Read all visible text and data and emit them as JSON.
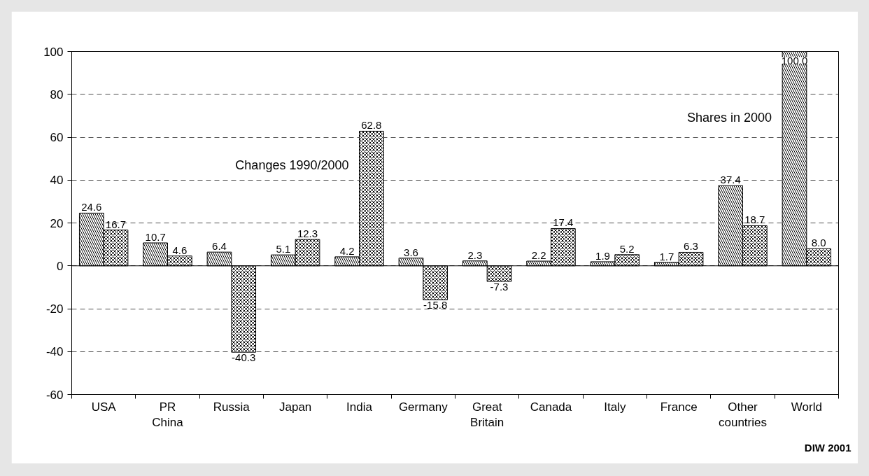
{
  "chart_data": {
    "type": "bar",
    "categories": [
      "USA",
      "PR China",
      "Russia",
      "Japan",
      "India",
      "Germany",
      "Great Britain",
      "Canada",
      "Italy",
      "France",
      "Other countries",
      "World"
    ],
    "series": [
      {
        "name": "Shares in 2000",
        "color": "#000000",
        "values": [
          24.6,
          10.7,
          6.4,
          5.1,
          4.2,
          3.6,
          2.3,
          2.2,
          1.9,
          1.7,
          37.4,
          100.0
        ],
        "value_labels": [
          "24.6",
          "10.7",
          "6.4",
          "5.1",
          "4.2",
          "3.6",
          "2.3",
          "2.2",
          "1.9",
          "1.7",
          "37.4",
          "100.0"
        ]
      },
      {
        "name": "Changes 1990/2000",
        "color": "#000000",
        "values": [
          16.7,
          4.6,
          -40.3,
          12.3,
          62.8,
          -15.8,
          -7.3,
          17.4,
          5.2,
          6.3,
          18.7,
          8.0
        ],
        "value_labels": [
          "16.7",
          "4.6",
          "-40.3",
          "12.3",
          "62.8",
          "-15.8",
          "-7.3",
          "17.4",
          "5.2",
          "6.3",
          "18.7",
          "8.0"
        ]
      }
    ],
    "ylim": [
      -60,
      100
    ],
    "yticks": [
      -60,
      -40,
      -20,
      0,
      20,
      40,
      60,
      80,
      100
    ],
    "grid": "y",
    "ref_lines": [
      {
        "axis": "y",
        "value": 0,
        "color": "#000000",
        "line_style": "solid"
      }
    ],
    "annotations": [
      "DIW 2001"
    ]
  }
}
